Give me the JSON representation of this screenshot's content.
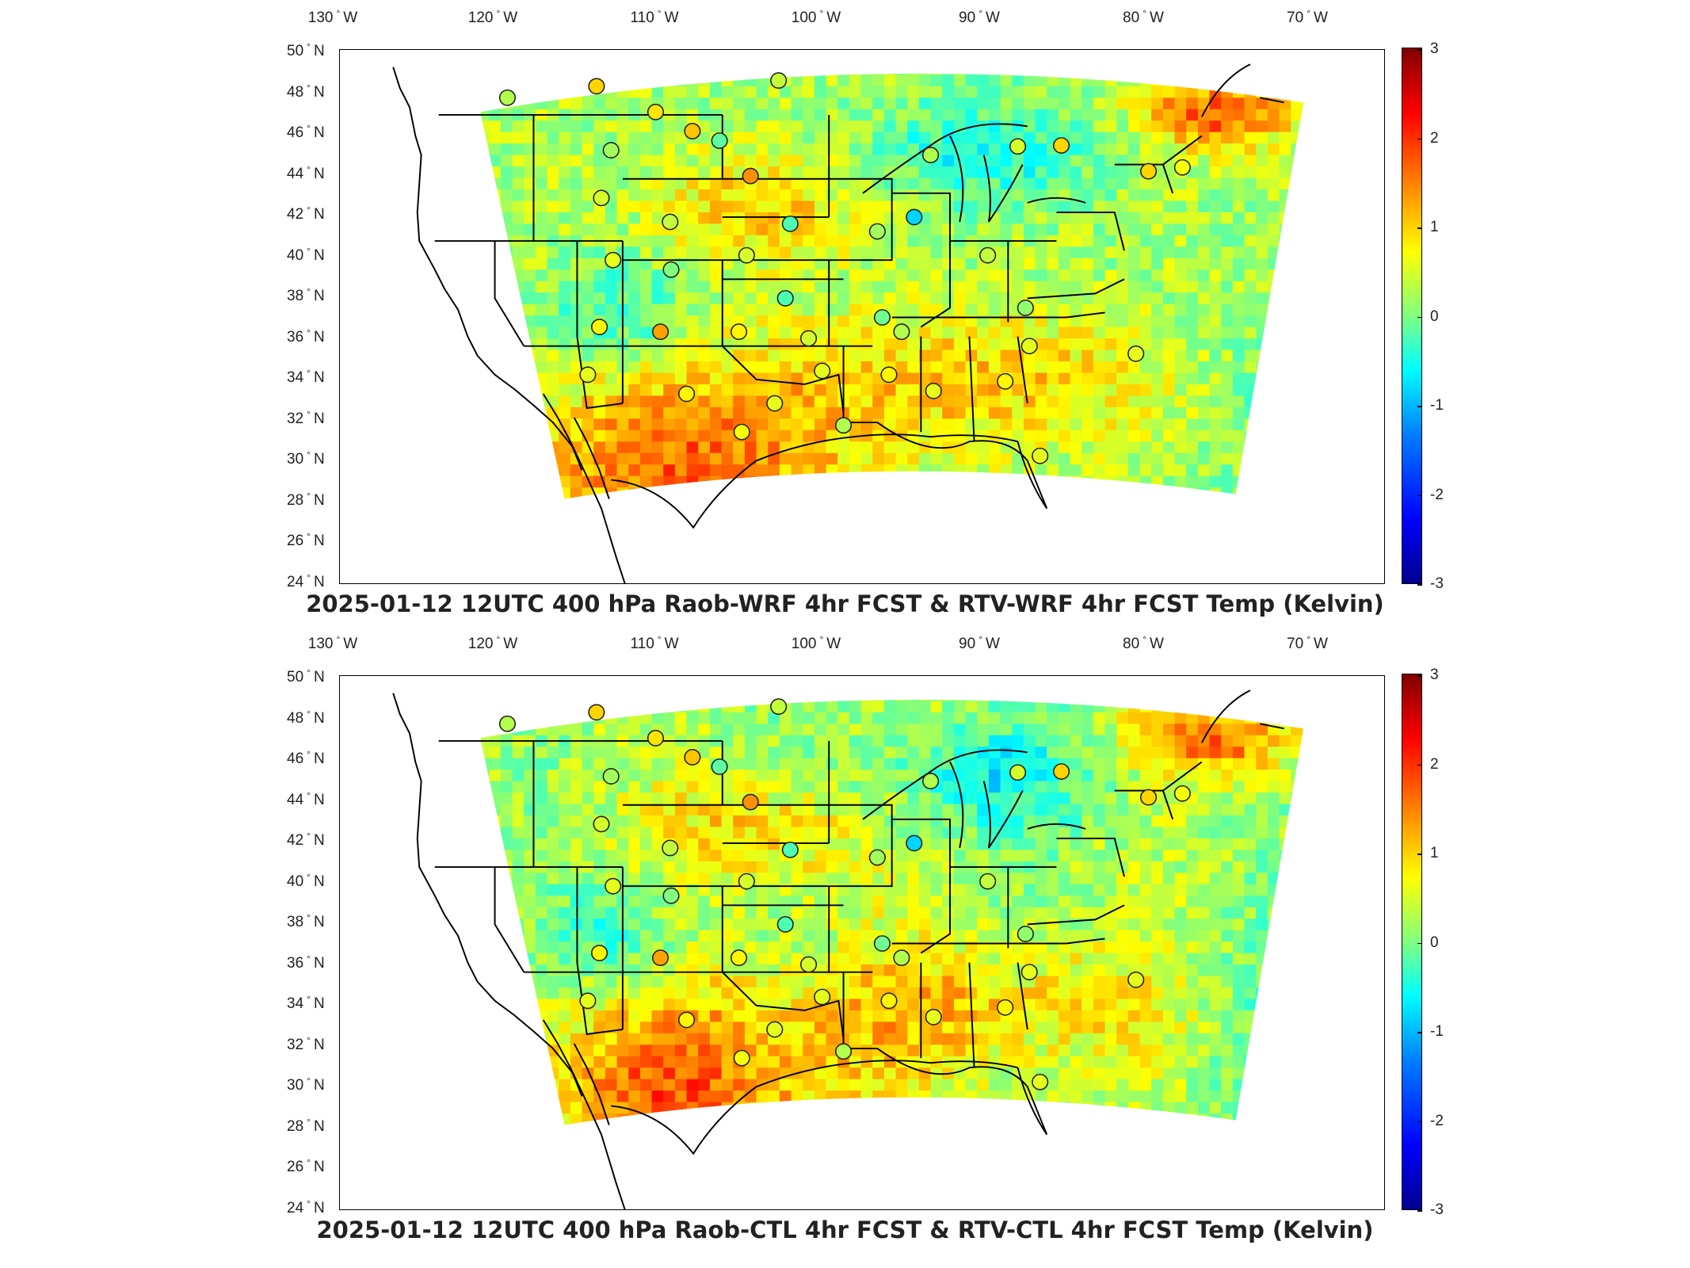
{
  "panels": [
    {
      "title": "2025-01-12 12UTC 400 hPa Raob-WRF 4hr FCST & RTV-WRF 4hr FCST Temp (Kelvin)"
    },
    {
      "title": "2025-01-12 12UTC 400 hPa Raob-CTL 4hr FCST & RTV-CTL 4hr FCST Temp (Kelvin)"
    }
  ],
  "axes": {
    "lon_labels": [
      "130",
      "120",
      "110",
      "100",
      "90",
      "80",
      "70"
    ],
    "lon_suffix": "W",
    "lat_labels": [
      "50",
      "48",
      "46",
      "44",
      "42",
      "40",
      "38",
      "36",
      "34",
      "32",
      "30",
      "28",
      "26",
      "24"
    ],
    "lat_suffix": "N",
    "degree_symbol": "°"
  },
  "colorbar": {
    "ticks": [
      "3",
      "2",
      "1",
      "0",
      "-1",
      "-2",
      "-3"
    ],
    "range": [
      -3,
      3
    ],
    "colormap": "jet"
  },
  "colors": {
    "frame": "#000000",
    "background": "#ffffff",
    "field_base": "#a8e86a"
  }
}
